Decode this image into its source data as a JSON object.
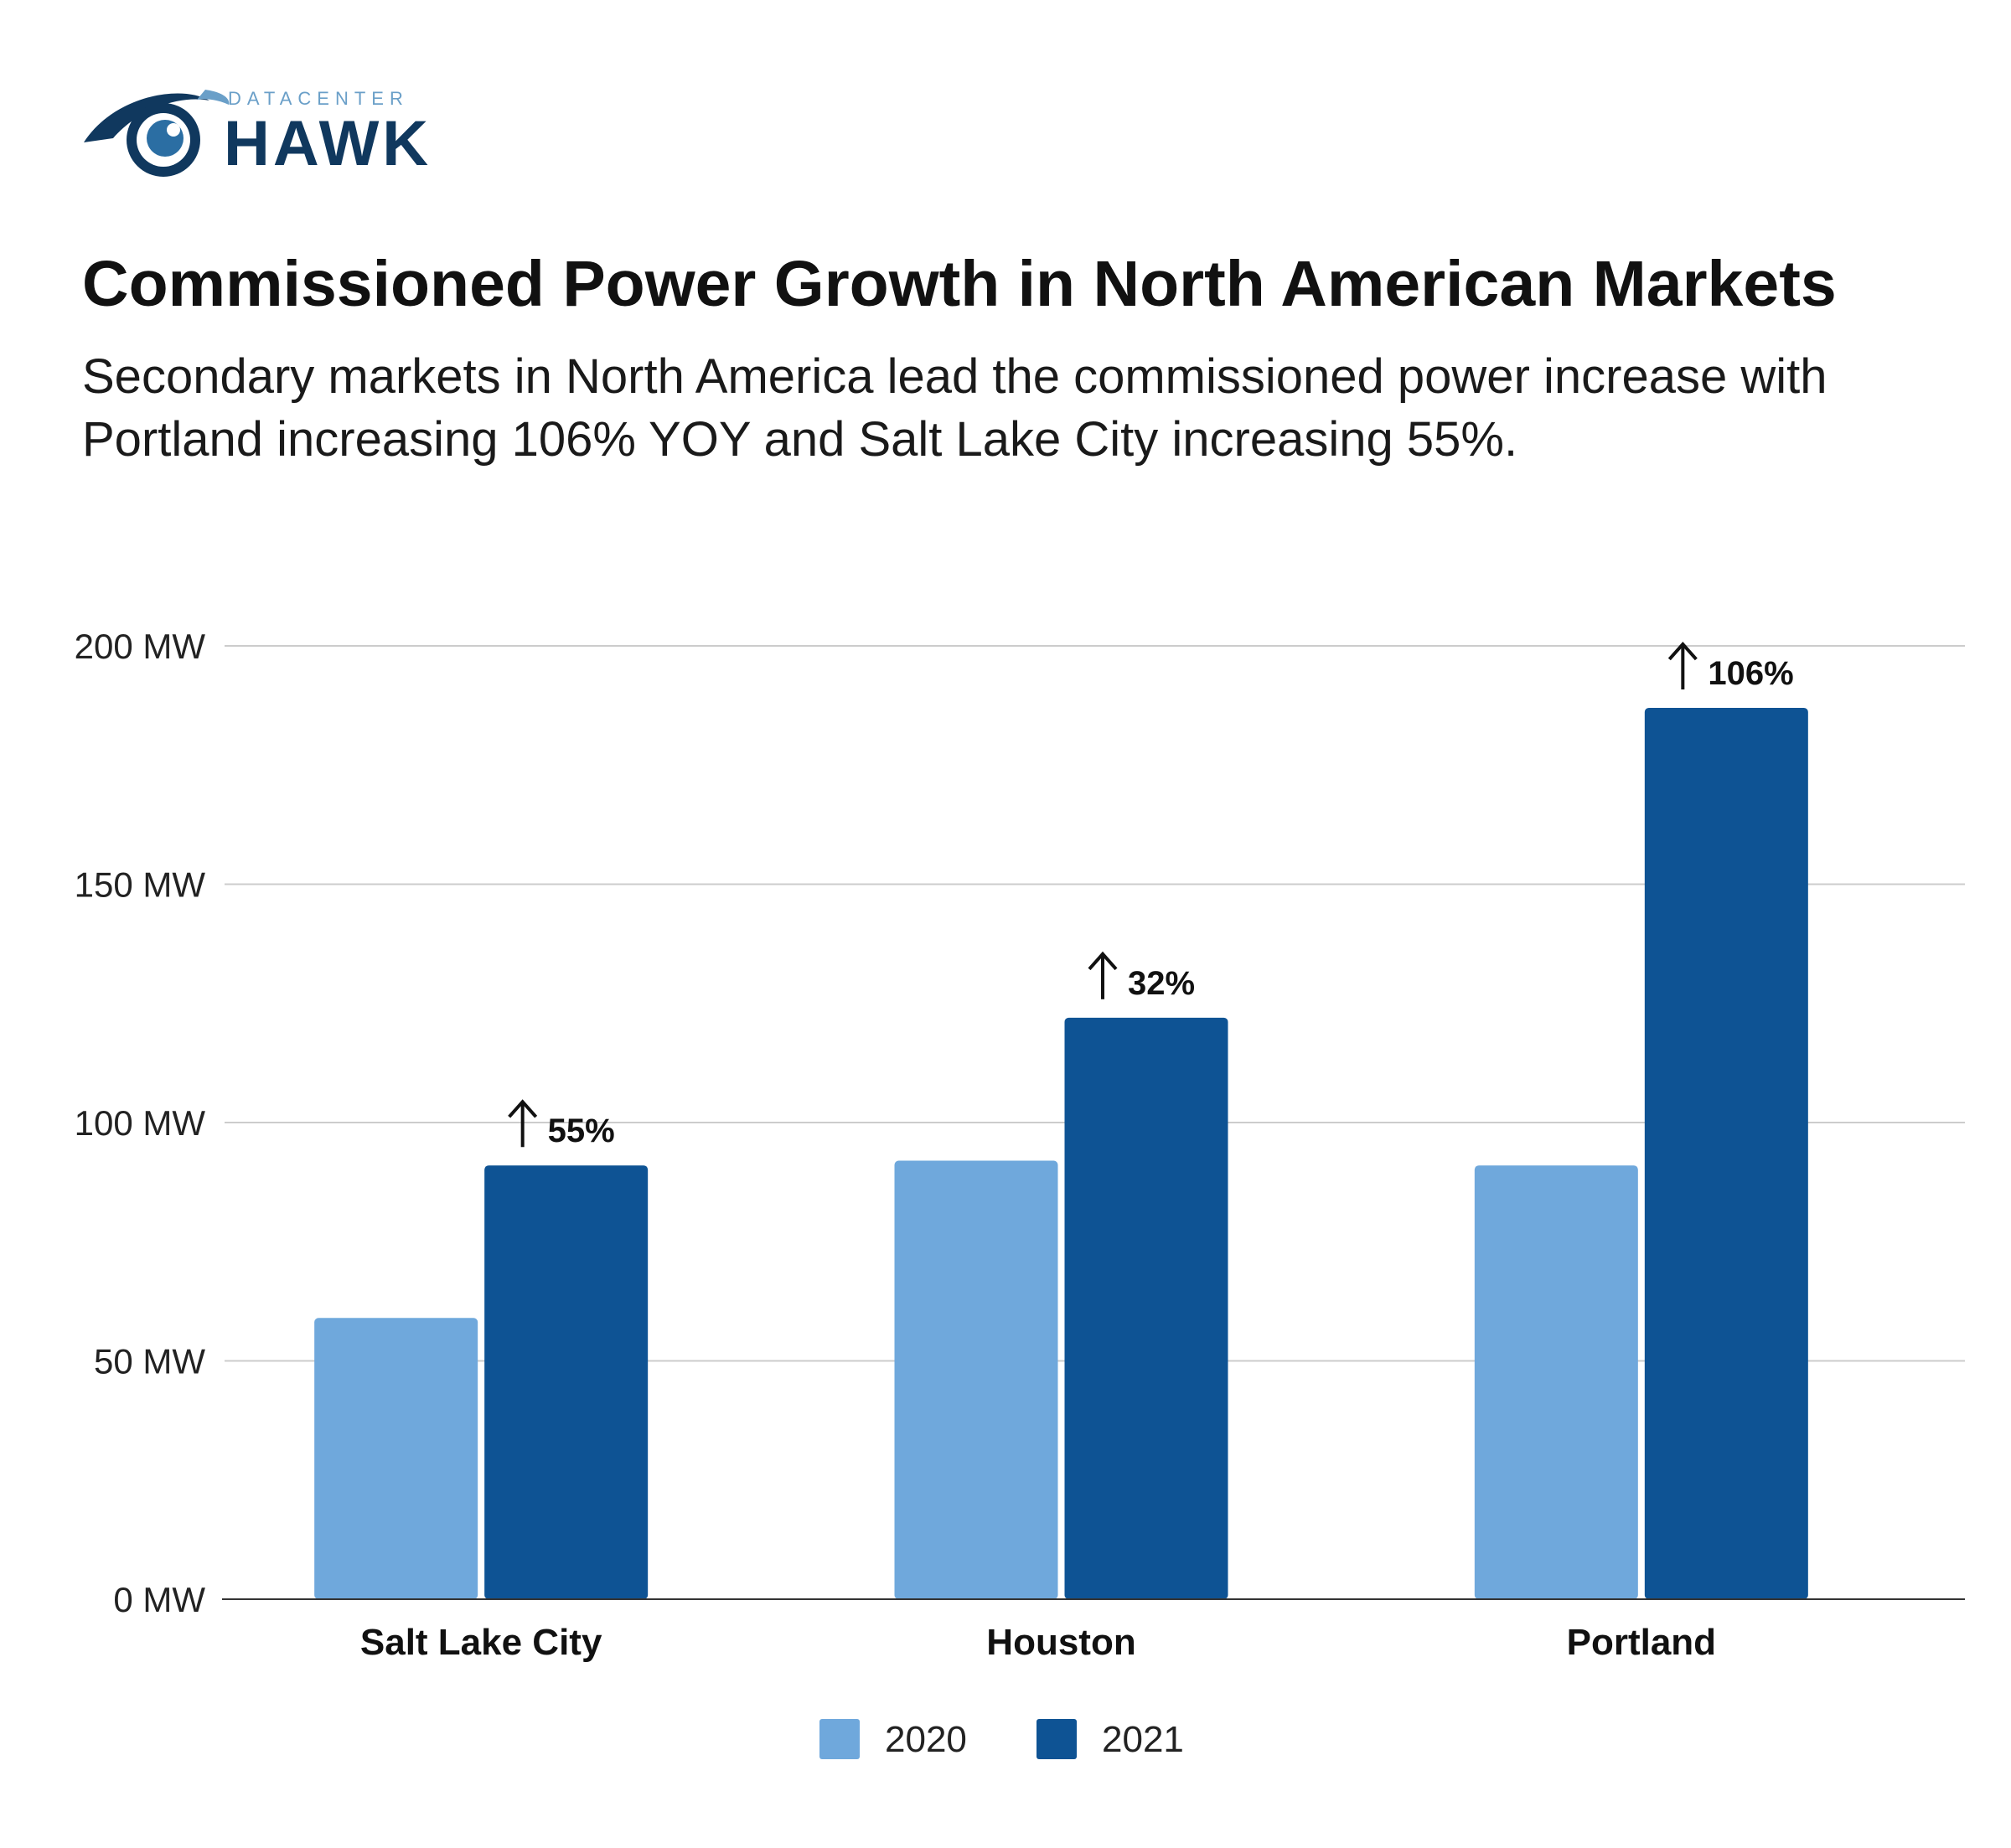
{
  "brand": {
    "logo_small": "DATACENTER",
    "logo_large": "HAWK",
    "colors": {
      "logo_dark": "#10385e",
      "logo_light": "#6a9fc8"
    }
  },
  "header": {
    "title": "Commissioned Power Growth in North American Markets",
    "subtitle": "Secondary markets in North America lead the commissioned power increase with Portland increasing 106% YOY and Salt Lake City increasing 55%."
  },
  "chart_data": {
    "type": "bar",
    "categories": [
      "Salt Lake City",
      "Houston",
      "Portland"
    ],
    "series": [
      {
        "name": "2020",
        "values": [
          59,
          92,
          91
        ],
        "color": "#6fa8dc"
      },
      {
        "name": "2021",
        "values": [
          91,
          122,
          187
        ],
        "color": "#0e5394"
      }
    ],
    "annotations": [
      {
        "category": "Salt Lake City",
        "text": "55%",
        "icon": "up-arrow-icon"
      },
      {
        "category": "Houston",
        "text": "32%",
        "icon": "up-arrow-icon"
      },
      {
        "category": "Portland",
        "text": "106%",
        "icon": "up-arrow-icon"
      }
    ],
    "yticks": [
      "0 MW",
      "50 MW",
      "100 MW",
      "150 MW",
      "200 MW"
    ],
    "ytick_values": [
      0,
      50,
      100,
      150,
      200
    ],
    "ylim": [
      0,
      200
    ],
    "xlabel": "",
    "ylabel": "",
    "grid": true,
    "legend_position": "bottom-center"
  }
}
